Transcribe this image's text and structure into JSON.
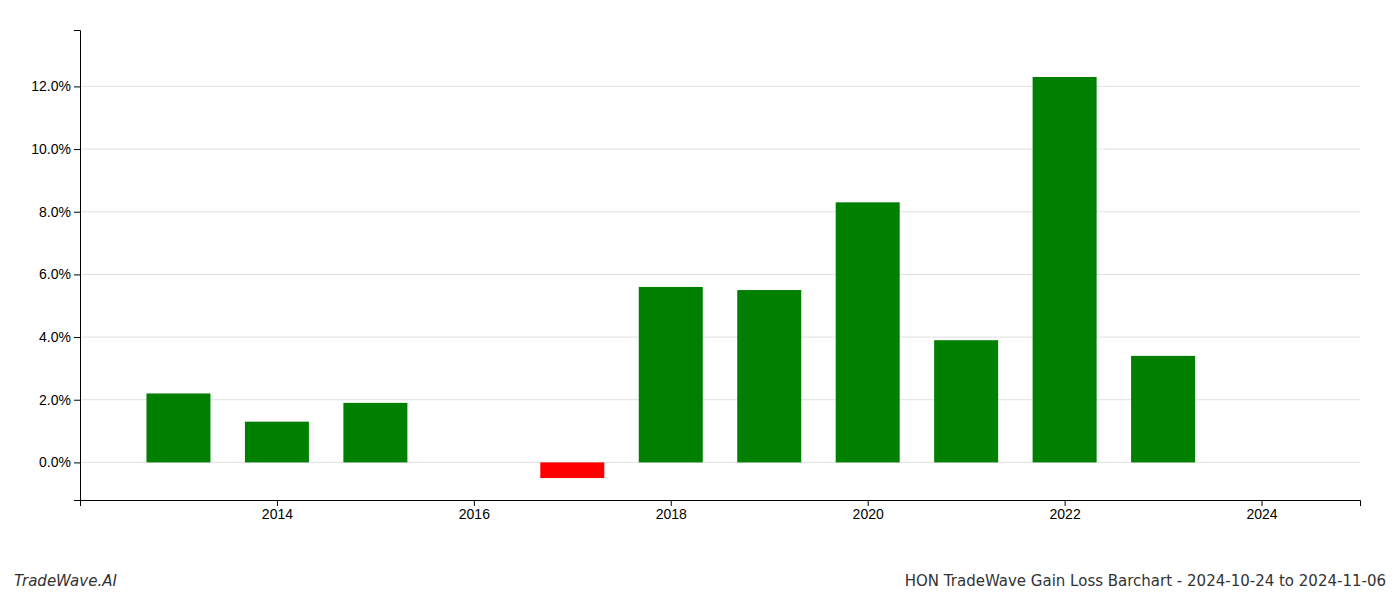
{
  "chart_data": {
    "type": "bar",
    "title": "HON TradeWave Gain Loss Barchart - 2024-10-24 to 2024-11-06",
    "annotations": [
      "TradeWave.AI"
    ],
    "x": [
      2013,
      2014,
      2015,
      2017,
      2018,
      2019,
      2020,
      2021,
      2022,
      2023
    ],
    "values": [
      0.022,
      0.013,
      0.019,
      -0.005,
      0.056,
      0.055,
      0.083,
      0.039,
      0.123,
      0.034
    ],
    "colors": [
      "#008000",
      "#008000",
      "#008000",
      "#ff0000",
      "#008000",
      "#008000",
      "#008000",
      "#008000",
      "#008000",
      "#008000"
    ],
    "xlim": [
      2012.0,
      2025.0
    ],
    "ylim": [
      -0.012,
      0.138
    ],
    "xticks": [
      2014,
      2016,
      2018,
      2020,
      2022,
      2024
    ],
    "yticks": [
      {
        "value": 0.0,
        "label": "0.0%"
      },
      {
        "value": 0.02,
        "label": "2.0%"
      },
      {
        "value": 0.04,
        "label": "4.0%"
      },
      {
        "value": 0.06,
        "label": "6.0%"
      },
      {
        "value": 0.08,
        "label": "8.0%"
      },
      {
        "value": 0.1,
        "label": "10.0%"
      },
      {
        "value": 0.12,
        "label": "12.0%"
      }
    ],
    "grid": true
  }
}
